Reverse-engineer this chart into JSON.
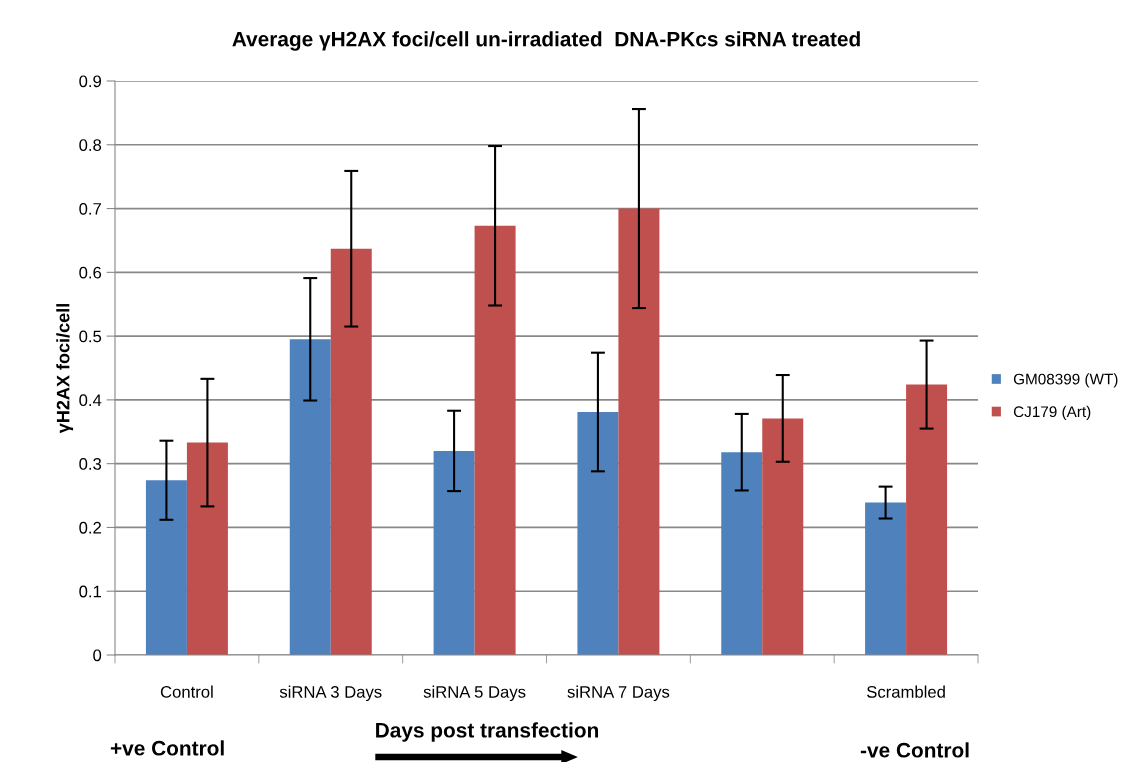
{
  "chart_data": {
    "type": "bar",
    "title": "Average γH2AX foci/cell un-irradiated  DNA-PKcs siRNA treated",
    "ylabel": "γH2AX foci/cell",
    "categories": [
      "Control",
      "siRNA 3 Days",
      "siRNA 5 Days",
      "siRNA 7 Days",
      null,
      "Scrambled"
    ],
    "series": [
      {
        "name": "GM08399 (WT)",
        "color": "#4f81bd",
        "values": [
          0.274,
          0.495,
          0.32,
          0.381,
          0.318,
          0.239
        ],
        "errors": [
          0.062,
          0.096,
          0.063,
          0.093,
          0.06,
          0.025
        ]
      },
      {
        "name": "CJ179 (Art)",
        "color": "#c0504d",
        "values": [
          0.333,
          0.637,
          0.673,
          0.7,
          0.371,
          0.424
        ],
        "errors": [
          0.1,
          0.122,
          0.125,
          0.156,
          0.068,
          0.069
        ]
      }
    ],
    "ylim": [
      0,
      0.9
    ],
    "yticks": [
      {
        "value": 0,
        "label": "0"
      },
      0.1,
      0.2,
      0.3,
      0.4,
      0.5,
      0.6,
      0.7,
      0.8,
      0.9
    ],
    "grid": "y",
    "legend": "right",
    "annotations": [
      "+ve Control",
      "Days post transfection",
      "-ve Control"
    ]
  }
}
